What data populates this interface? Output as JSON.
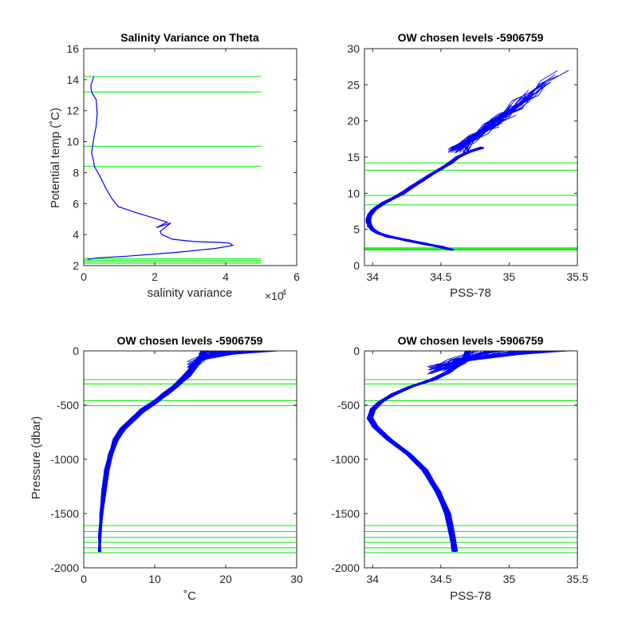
{
  "chart_data": [
    {
      "type": "line",
      "title": "Salinity Variance on Theta",
      "xlabel": "salinity variance",
      "ylabel": "Potential temp (˚C)",
      "x_exponent_label": "×10",
      "x_exponent_power": "-4",
      "xlim": [
        0,
        6
      ],
      "ylim": [
        2,
        16
      ],
      "xticks": [
        0,
        2,
        4,
        6
      ],
      "yticks": [
        2,
        4,
        6,
        8,
        10,
        12,
        14,
        16
      ],
      "x_scale": 0.0001,
      "series": [
        {
          "color": "#0000ff",
          "points": [
            [
              0.28,
              14.2
            ],
            [
              0.2,
              13.6
            ],
            [
              0.22,
              13.2
            ],
            [
              0.35,
              12.7
            ],
            [
              0.38,
              11.8
            ],
            [
              0.35,
              11.0
            ],
            [
              0.28,
              10.2
            ],
            [
              0.25,
              9.7
            ],
            [
              0.22,
              9.3
            ],
            [
              0.28,
              8.7
            ],
            [
              0.3,
              8.4
            ],
            [
              0.45,
              7.8
            ],
            [
              0.62,
              7.0
            ],
            [
              0.8,
              6.3
            ],
            [
              0.98,
              5.8
            ],
            [
              1.5,
              5.4
            ],
            [
              2.0,
              5.05
            ],
            [
              2.35,
              4.8
            ],
            [
              2.05,
              4.45
            ],
            [
              2.45,
              4.75
            ],
            [
              2.15,
              4.2
            ],
            [
              2.2,
              4.0
            ],
            [
              2.5,
              3.7
            ],
            [
              3.1,
              3.55
            ],
            [
              3.8,
              3.5
            ],
            [
              4.1,
              3.45
            ],
            [
              4.2,
              3.3
            ],
            [
              3.7,
              3.1
            ],
            [
              2.6,
              2.85
            ],
            [
              1.2,
              2.6
            ],
            [
              0.4,
              2.5
            ],
            [
              0.1,
              2.4
            ]
          ]
        }
      ],
      "chosen_levels_y": [
        14.2,
        13.2,
        9.7,
        8.4,
        2.45,
        2.35,
        2.25,
        2.15
      ]
    },
    {
      "type": "line",
      "title": "OW chosen levels -5906759",
      "xlabel": "PSS-78",
      "ylabel": "",
      "xlim": [
        33.94,
        35.5
      ],
      "ylim": [
        0,
        30
      ],
      "xticks": [
        34,
        34.5,
        35,
        35.5
      ],
      "yticks": [
        0,
        5,
        10,
        15,
        20,
        25,
        30
      ],
      "profile_points": [
        [
          34.58,
          2.2
        ],
        [
          34.5,
          2.6
        ],
        [
          34.38,
          3.0
        ],
        [
          34.25,
          3.5
        ],
        [
          34.12,
          4.0
        ],
        [
          34.04,
          4.5
        ],
        [
          34.0,
          5.0
        ],
        [
          33.98,
          5.5
        ],
        [
          33.97,
          6.0
        ],
        [
          33.97,
          6.5
        ],
        [
          33.98,
          7.0
        ],
        [
          34.0,
          7.5
        ],
        [
          34.03,
          8.0
        ],
        [
          34.08,
          8.6
        ],
        [
          34.15,
          9.3
        ],
        [
          34.22,
          10.0
        ],
        [
          34.28,
          10.8
        ],
        [
          34.35,
          11.6
        ],
        [
          34.42,
          12.5
        ],
        [
          34.5,
          13.4
        ],
        [
          34.57,
          14.2
        ],
        [
          34.62,
          15.0
        ],
        [
          34.7,
          15.7
        ],
        [
          34.8,
          16.3
        ]
      ],
      "surface_fan": {
        "t_start": 15.5,
        "t_end": [
          19,
          27.2
        ],
        "s_end": [
          34.8,
          35.45
        ]
      },
      "chosen_levels_y": [
        14.2,
        13.2,
        9.7,
        8.4,
        2.45,
        2.35,
        2.25,
        2.15
      ]
    },
    {
      "type": "line",
      "title": "OW chosen levels -5906759",
      "xlabel": "˚C",
      "ylabel": "Pressure (dbar)",
      "xlim": [
        0,
        30
      ],
      "ylim": [
        -2000,
        0
      ],
      "xticks": [
        0,
        10,
        20,
        30
      ],
      "yticks": [
        -2000,
        -1500,
        -1000,
        -500,
        0
      ],
      "profile_points": [
        [
          2.2,
          -1850
        ],
        [
          2.3,
          -1700
        ],
        [
          2.5,
          -1500
        ],
        [
          2.8,
          -1300
        ],
        [
          3.2,
          -1100
        ],
        [
          3.8,
          -950
        ],
        [
          4.5,
          -820
        ],
        [
          5.5,
          -720
        ],
        [
          7.0,
          -620
        ],
        [
          8.5,
          -540
        ],
        [
          10.0,
          -470
        ],
        [
          11.5,
          -400
        ],
        [
          13.0,
          -320
        ],
        [
          14.5,
          -230
        ],
        [
          15.5,
          -150
        ],
        [
          16.3,
          -80
        ],
        [
          16.8,
          -30
        ],
        [
          17.0,
          0
        ]
      ],
      "surface_fan": {
        "x_end": [
          17,
          27.5
        ],
        "p_start": -160
      },
      "chosen_levels_y": [
        -265,
        -305,
        -460,
        -505,
        -1610,
        -1665,
        -1720,
        -1765,
        -1815,
        -1860
      ]
    },
    {
      "type": "line",
      "title": "OW chosen levels -5906759",
      "xlabel": "PSS-78",
      "ylabel": "",
      "xlim": [
        33.94,
        35.5
      ],
      "ylim": [
        -2000,
        0
      ],
      "xticks": [
        34,
        34.5,
        35,
        35.5
      ],
      "yticks": [
        -2000,
        -1500,
        -1000,
        -500,
        0
      ],
      "profile_points": [
        [
          34.6,
          -1850
        ],
        [
          34.58,
          -1700
        ],
        [
          34.55,
          -1500
        ],
        [
          34.48,
          -1300
        ],
        [
          34.38,
          -1100
        ],
        [
          34.26,
          -950
        ],
        [
          34.12,
          -820
        ],
        [
          34.02,
          -700
        ],
        [
          33.98,
          -620
        ],
        [
          34.0,
          -540
        ],
        [
          34.06,
          -470
        ],
        [
          34.15,
          -400
        ],
        [
          34.28,
          -330
        ],
        [
          34.45,
          -260
        ],
        [
          34.55,
          -200
        ],
        [
          34.62,
          -130
        ],
        [
          34.68,
          -60
        ],
        [
          34.7,
          0
        ]
      ],
      "surface_fan": {
        "x_end": [
          34.7,
          35.5
        ],
        "p_start": -220
      },
      "chosen_levels_y": [
        -265,
        -305,
        -460,
        -505,
        -1610,
        -1665,
        -1720,
        -1765,
        -1815,
        -1860
      ]
    }
  ],
  "colors": {
    "profile": "#0000ff",
    "levels": "#00ee00",
    "axes": "#262626"
  }
}
